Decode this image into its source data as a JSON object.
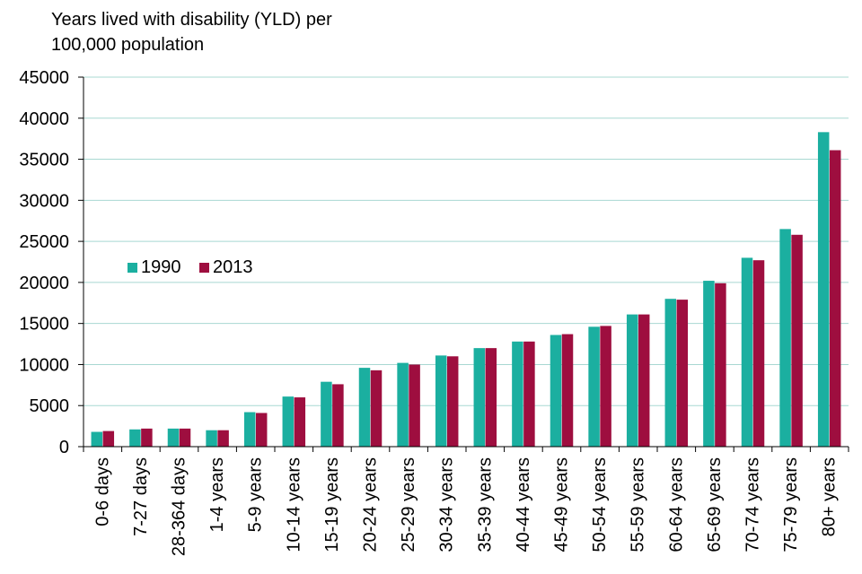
{
  "chart_data": {
    "type": "bar",
    "title": "Years lived with disability (YLD) per 100,000 population",
    "title_lines": [
      "Years lived with disability (YLD) per",
      "100,000 population"
    ],
    "xlabel": "",
    "ylabel": "",
    "ylim": [
      0,
      45000
    ],
    "yticks": [
      0,
      5000,
      10000,
      15000,
      20000,
      25000,
      30000,
      35000,
      40000,
      45000
    ],
    "grid": true,
    "legend_position": "middle-left",
    "categories": [
      "0-6 days",
      "7-27 days",
      "28-364 days",
      "1-4 years",
      "5-9 years",
      "10-14 years",
      "15-19 years",
      "20-24 years",
      "25-29 years",
      "30-34 years",
      "35-39 years",
      "40-44 years",
      "45-49 years",
      "50-54 years",
      "55-59 years",
      "60-64 years",
      "65-69 years",
      "70-74 years",
      "75-79 years",
      "80+ years"
    ],
    "series": [
      {
        "name": "1990",
        "color": "#1BAFA0",
        "values": [
          1800,
          2100,
          2200,
          2000,
          4200,
          6100,
          7900,
          9600,
          10200,
          11100,
          12000,
          12800,
          13600,
          14600,
          16100,
          18000,
          20200,
          23000,
          26500,
          38300
        ]
      },
      {
        "name": "2013",
        "color": "#9E0E3F",
        "values": [
          1900,
          2200,
          2200,
          2000,
          4100,
          6000,
          7600,
          9300,
          10000,
          11000,
          12000,
          12800,
          13700,
          14700,
          16100,
          17900,
          19900,
          22700,
          25800,
          36100
        ]
      }
    ]
  },
  "colors": {
    "axis": "#000000",
    "grid": "#A8D8D2"
  }
}
